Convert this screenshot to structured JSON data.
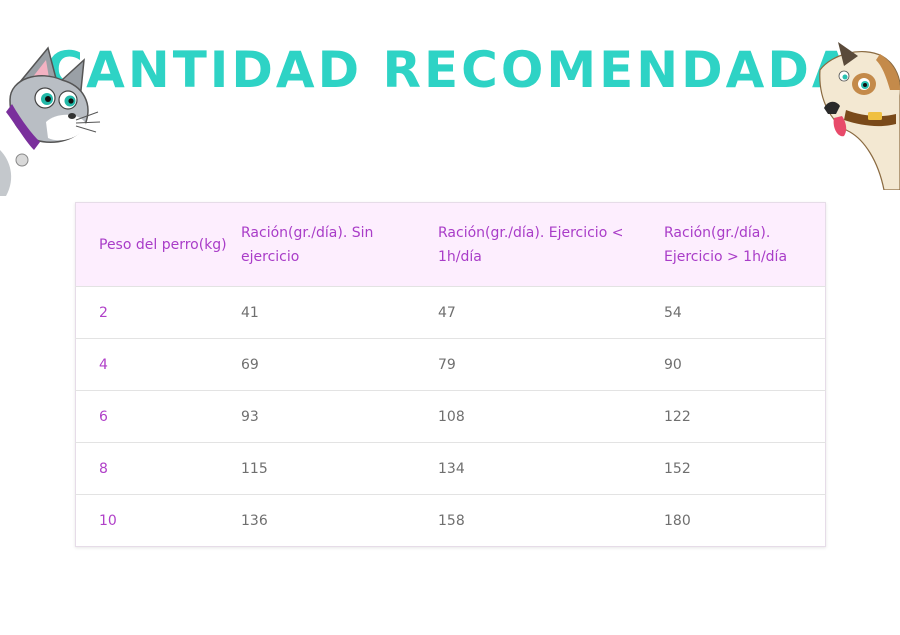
{
  "title": "CANTIDAD RECOMENDADA",
  "colors": {
    "title": "#2ed3c5",
    "header_text": "#a93cc8",
    "header_bg": "#fdeefe",
    "weight_text": "#b040c8",
    "cell_text": "#6f6f6f"
  },
  "table": {
    "headers": [
      "Peso del perro(kg)",
      "Ración(gr./día). Sin ejercicio",
      "Ración(gr./día). Ejercicio < 1h/día",
      "Ración(gr./día). Ejercicio > 1h/día"
    ],
    "rows": [
      [
        "2",
        "41",
        "47",
        "54"
      ],
      [
        "4",
        "69",
        "79",
        "90"
      ],
      [
        "6",
        "93",
        "108",
        "122"
      ],
      [
        "8",
        "115",
        "134",
        "152"
      ],
      [
        "10",
        "136",
        "158",
        "180"
      ]
    ]
  }
}
